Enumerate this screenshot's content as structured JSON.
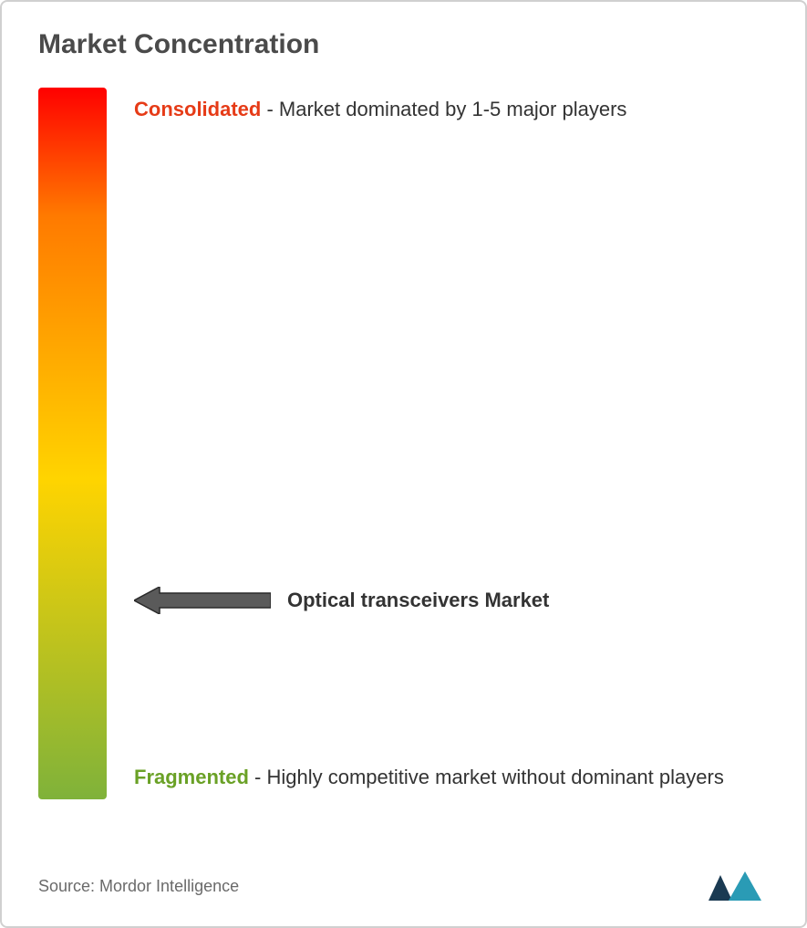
{
  "title": "Market Concentration",
  "gradient": {
    "top_color": "#ff0000",
    "mid1_color": "#ff7a00",
    "mid2_color": "#ffd400",
    "bottom_color": "#7fb23a",
    "stops": [
      0,
      18,
      55,
      100
    ]
  },
  "labels": {
    "top": {
      "highlight": "Consolidated",
      "highlight_color": "#e63b17",
      "rest": "- Market dominated by 1-5 major players"
    },
    "bottom": {
      "highlight": "Fragmented",
      "highlight_color": "#6aa126",
      "rest": "- Highly competitive market without dominant players"
    }
  },
  "arrow": {
    "label": "Optical transceivers Market",
    "position_percent": 72,
    "fill_color": "#5a5a5a",
    "border_color": "#2a2a2a"
  },
  "footer": {
    "source": "Source: Mordor Intelligence",
    "logo_color_left": "#1a3a52",
    "logo_color_right": "#2a9bb5"
  },
  "colors": {
    "title_text": "#4a4a4a",
    "body_text": "#333333",
    "source_text": "#6a6a6a",
    "border": "#d0d0d0",
    "background": "#ffffff"
  },
  "typography": {
    "title_fontsize": 30,
    "label_fontsize": 22,
    "source_fontsize": 18
  }
}
